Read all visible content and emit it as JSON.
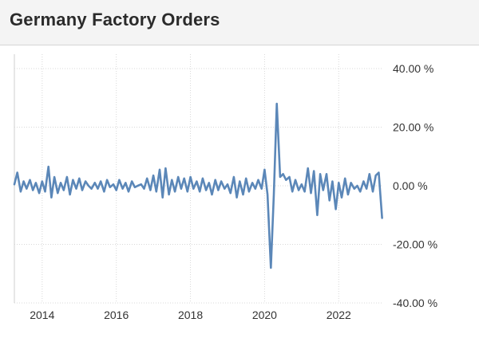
{
  "header": {
    "title": "Germany Factory Orders"
  },
  "chart_data": {
    "type": "line",
    "title": "Germany Factory Orders",
    "xlabel": "",
    "ylabel": "",
    "x_ticks": [
      2014,
      2016,
      2018,
      2020,
      2022
    ],
    "y_ticks": [
      {
        "value": 40,
        "label": "40.00 %"
      },
      {
        "value": 20,
        "label": "20.00 %"
      },
      {
        "value": 0,
        "label": "0.00 %"
      },
      {
        "value": -20,
        "label": "-20.00 %"
      },
      {
        "value": -40,
        "label": "-40.00 %"
      }
    ],
    "xlim": [
      2013.25,
      2023.2
    ],
    "ylim": [
      -40,
      40
    ],
    "grid": true,
    "series": [
      {
        "color": "#5b87b8",
        "x": [
          2013.25,
          2013.33,
          2013.42,
          2013.5,
          2013.58,
          2013.67,
          2013.75,
          2013.83,
          2013.92,
          2014.0,
          2014.08,
          2014.17,
          2014.25,
          2014.33,
          2014.42,
          2014.5,
          2014.58,
          2014.67,
          2014.75,
          2014.83,
          2014.92,
          2015.0,
          2015.08,
          2015.17,
          2015.25,
          2015.33,
          2015.42,
          2015.5,
          2015.58,
          2015.67,
          2015.75,
          2015.83,
          2015.92,
          2016.0,
          2016.08,
          2016.17,
          2016.25,
          2016.33,
          2016.42,
          2016.5,
          2016.58,
          2016.67,
          2016.75,
          2016.83,
          2016.92,
          2017.0,
          2017.08,
          2017.17,
          2017.25,
          2017.33,
          2017.42,
          2017.5,
          2017.58,
          2017.67,
          2017.75,
          2017.83,
          2017.92,
          2018.0,
          2018.08,
          2018.17,
          2018.25,
          2018.33,
          2018.42,
          2018.5,
          2018.58,
          2018.67,
          2018.75,
          2018.83,
          2018.92,
          2019.0,
          2019.08,
          2019.17,
          2019.25,
          2019.33,
          2019.42,
          2019.5,
          2019.58,
          2019.67,
          2019.75,
          2019.83,
          2019.92,
          2020.0,
          2020.08,
          2020.17,
          2020.25,
          2020.33,
          2020.42,
          2020.5,
          2020.58,
          2020.67,
          2020.75,
          2020.83,
          2020.92,
          2021.0,
          2021.08,
          2021.17,
          2021.25,
          2021.33,
          2021.42,
          2021.5,
          2021.58,
          2021.67,
          2021.75,
          2021.83,
          2021.92,
          2022.0,
          2022.08,
          2022.17,
          2022.25,
          2022.33,
          2022.42,
          2022.5,
          2022.58,
          2022.67,
          2022.75,
          2022.83,
          2022.92,
          2023.0,
          2023.08,
          2023.17
        ],
        "values": [
          0.5,
          4.5,
          -2,
          1.5,
          -1,
          2,
          -1.5,
          1,
          -2.5,
          1.5,
          -2,
          6.5,
          -4,
          3,
          -2.5,
          1,
          -1.5,
          3,
          -3,
          2,
          -1,
          2.5,
          -1.5,
          1.5,
          0,
          -1,
          1,
          -1,
          1.5,
          -2,
          2,
          -0.5,
          0.5,
          -1.5,
          2,
          -1,
          1,
          -2,
          1.5,
          -0.5,
          0,
          0.5,
          -1,
          2.5,
          -1.5,
          3.5,
          -2,
          5.5,
          -4,
          6,
          -3,
          2,
          -2,
          3,
          -1,
          2.5,
          -2,
          3,
          -1,
          1.5,
          -2,
          2.5,
          -1.5,
          1,
          -3,
          2,
          -1.5,
          1.5,
          -1,
          0.5,
          -2.5,
          3,
          -4,
          1.5,
          -3,
          2.5,
          -2,
          1,
          -1,
          2,
          -1,
          5.5,
          -3,
          -28,
          -3,
          28,
          3,
          4,
          2,
          3,
          -2,
          2,
          -1.5,
          0.5,
          -2,
          6,
          -2.5,
          5,
          -10,
          4,
          -1.5,
          4,
          -5,
          1.5,
          -8,
          1,
          -4,
          2.5,
          -3,
          1,
          -1,
          0,
          -2,
          1.5,
          -1,
          4,
          -2,
          3.5,
          4.5,
          -11
        ]
      }
    ]
  }
}
